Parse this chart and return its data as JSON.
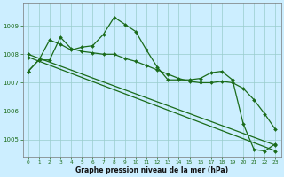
{
  "xlabel": "Graphe pression niveau de la mer (hPa)",
  "bg_color": "#cceeff",
  "grid_color": "#99cccc",
  "line_color": "#1a6b1a",
  "marker": "D",
  "marker_size": 2.0,
  "xlim": [
    -0.5,
    23.5
  ],
  "ylim": [
    1004.4,
    1009.8
  ],
  "yticks": [
    1005,
    1006,
    1007,
    1008,
    1009
  ],
  "xticks": [
    0,
    1,
    2,
    3,
    4,
    5,
    6,
    7,
    8,
    9,
    10,
    11,
    12,
    13,
    14,
    15,
    16,
    17,
    18,
    19,
    20,
    21,
    22,
    23
  ],
  "series": [
    {
      "x": [
        0,
        1,
        2,
        3,
        4,
        5,
        6,
        7,
        8,
        9,
        10,
        11,
        12,
        13,
        14,
        15,
        16,
        17,
        18,
        19,
        20,
        21,
        22,
        23
      ],
      "y": [
        1007.4,
        1007.8,
        1008.5,
        1008.35,
        1008.15,
        1008.25,
        1008.3,
        1008.7,
        1009.3,
        1009.05,
        1008.8,
        1008.15,
        1007.55,
        1007.1,
        1007.1,
        1007.1,
        1007.15,
        1007.35,
        1007.4,
        1007.1,
        1005.55,
        1004.65,
        1004.6,
        1004.85
      ]
    },
    {
      "x": [
        0,
        1,
        2,
        3,
        4,
        5,
        6,
        7,
        8,
        9,
        10,
        11,
        12,
        13,
        14,
        15,
        16,
        17,
        18,
        19,
        20,
        21,
        22,
        23
      ],
      "y": [
        1007.4,
        1007.8,
        1007.8,
        1008.6,
        1008.2,
        1008.1,
        1008.05,
        1008.0,
        1008.0,
        1007.85,
        1007.75,
        1007.6,
        1007.45,
        1007.3,
        1007.15,
        1007.05,
        1007.0,
        1007.0,
        1007.05,
        1007.0,
        1006.8,
        1006.4,
        1005.9,
        1005.35
      ]
    },
    {
      "x": [
        0,
        23
      ],
      "y": [
        1008.0,
        1004.8
      ]
    },
    {
      "x": [
        0,
        23
      ],
      "y": [
        1007.9,
        1004.6
      ]
    }
  ]
}
